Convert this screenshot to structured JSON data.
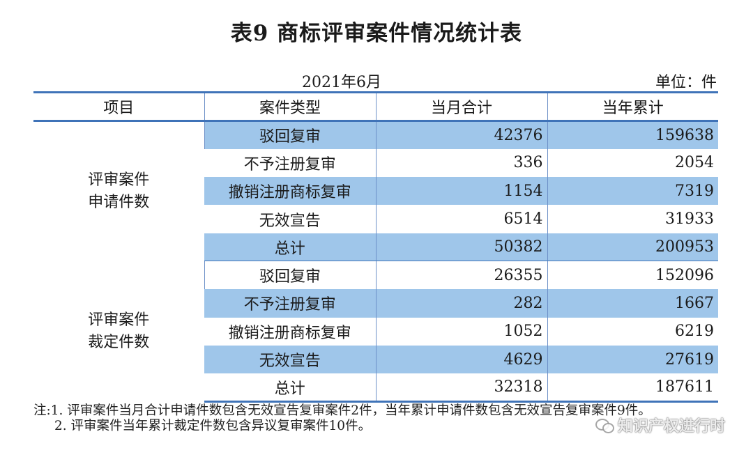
{
  "title": "表9  商标评审案件情况统计表",
  "date": "2021年6月",
  "unit": "单位：件",
  "headers": [
    "项目",
    "案件类型",
    "当月合计",
    "当年累计"
  ],
  "groups": [
    {
      "label_line1": "评审案件",
      "label_line2": "申请件数",
      "rows": [
        {
          "type": "驳回复审",
          "month": "42376",
          "year": "159638"
        },
        {
          "type": "不予注册复审",
          "month": "336",
          "year": "2054"
        },
        {
          "type": "撤销注册商标复审",
          "month": "1154",
          "year": "7319"
        },
        {
          "type": "无效宣告",
          "month": "6514",
          "year": "31933"
        },
        {
          "type": "总计",
          "month": "50382",
          "year": "200953"
        }
      ]
    },
    {
      "label_line1": "评审案件",
      "label_line2": "裁定件数",
      "rows": [
        {
          "type": "驳回复审",
          "month": "26355",
          "year": "152096"
        },
        {
          "type": "不予注册复审",
          "month": "282",
          "year": "1667"
        },
        {
          "type": "撤销注册商标复审",
          "month": "1052",
          "year": "6219"
        },
        {
          "type": "无效宣告",
          "month": "4629",
          "year": "27619"
        },
        {
          "type": "总计",
          "month": "32318",
          "year": "187611"
        }
      ]
    }
  ],
  "notes": [
    "注:1. 评审案件当月合计申请件数包含无效宣告复审案件2件，当年累计申请件数包含无效宣告复审案件9件。",
    "2. 评审案件当年累计裁定件数包含异议复审案件10件。"
  ],
  "watermark": {
    "icon": "wechat-icon",
    "text": "知识产权进行时"
  },
  "colors": {
    "row_shade": "#9fc6ea",
    "rule": "#3f73b8"
  }
}
